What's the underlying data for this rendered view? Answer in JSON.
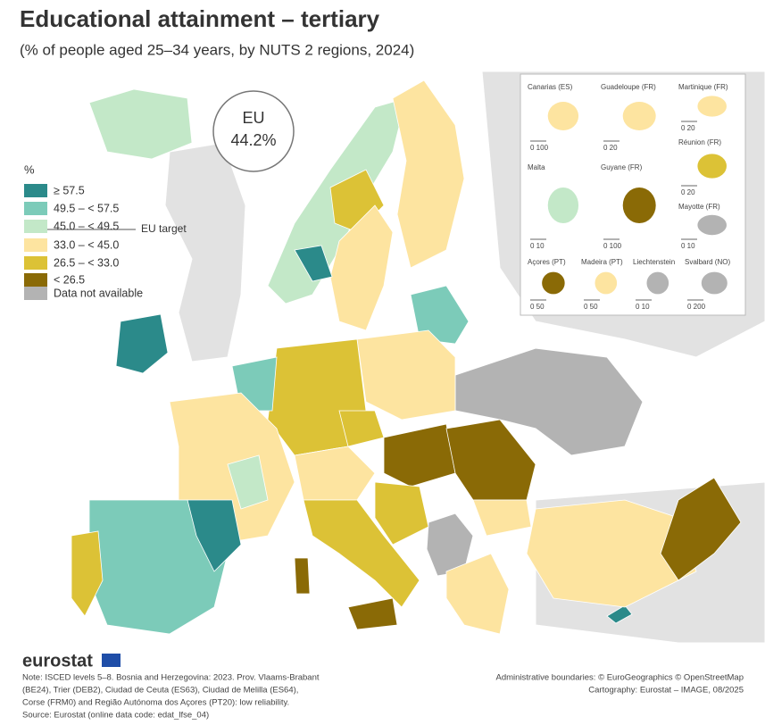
{
  "header": {
    "title": "Educational attainment – tertiary",
    "subtitle": "(% of people aged 25–34 years, by NUTS 2 regions, 2024)"
  },
  "eu_box": {
    "label": "EU",
    "value": "44.2%"
  },
  "legend": {
    "title": "%",
    "classes": [
      {
        "label": "≥ 57.5",
        "color": "#2b8a8a"
      },
      {
        "label": "49.5 – < 57.5",
        "color": "#7ccbb9"
      },
      {
        "label": "45.0 – < 49.5",
        "color": "#c3e8c8"
      },
      {
        "label": "33.0 – < 45.0",
        "color": "#fde4a0"
      },
      {
        "label": "26.5 – < 33.0",
        "color": "#dcc236"
      },
      {
        "label": "< 26.5",
        "color": "#8a6a06"
      }
    ],
    "target_label": "EU target",
    "na": {
      "label": "Data not available",
      "color": "#b3b3b3"
    }
  },
  "insets": [
    {
      "name": "Canarias (ES)",
      "scale": "0   100"
    },
    {
      "name": "Guadeloupe (FR)",
      "scale": "0   20"
    },
    {
      "name": "Martinique (FR)",
      "scale": "0   20"
    },
    {
      "name": "Réunion (FR)",
      "scale": "0   20"
    },
    {
      "name": "Malta",
      "scale": "0   10"
    },
    {
      "name": "Guyane (FR)",
      "scale": "0   100"
    },
    {
      "name": "Mayotte (FR)",
      "scale": "0   10"
    },
    {
      "name": "Açores (PT)",
      "scale": "0   50"
    },
    {
      "name": "Madeira (PT)",
      "scale": "0   50"
    },
    {
      "name": "Liechtenstein",
      "scale": "0   10"
    },
    {
      "name": "Svalbard (NO)",
      "scale": "0   200"
    }
  ],
  "footer": {
    "logo": "eurostat",
    "notes": [
      "Note: ISCED levels 5–8. Bosnia and Herzegovina: 2023. Prov. Vlaams-Brabant",
      "(BE24), Trier (DEB2), Ciudad de Ceuta (ES63), Ciudad de Melilla (ES64),",
      "Corse (FRM0) and Região Autónoma dos Açores (PT20): low reliability.",
      "Source: Eurostat (online data code: edat_lfse_04)"
    ],
    "credits": [
      "Administrative boundaries: © EuroGeographics © OpenStreetMap",
      "Cartography: Eurostat – IMAGE, 08/2025"
    ]
  }
}
